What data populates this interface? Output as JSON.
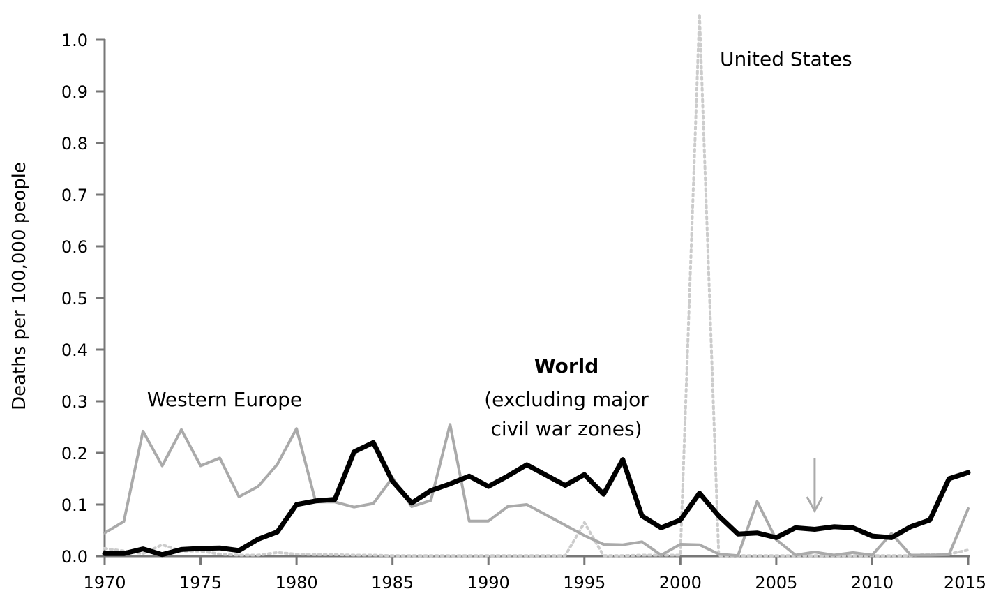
{
  "chart_data": {
    "type": "line",
    "title": "",
    "xlabel": "",
    "ylabel": "Deaths per 100,000 people",
    "xlim": [
      1970,
      2015
    ],
    "ylim": [
      0,
      1.0
    ],
    "x_ticks": [
      "1970",
      "1975",
      "1980",
      "1985",
      "1990",
      "1995",
      "2000",
      "2005",
      "2010",
      "2015"
    ],
    "y_ticks": [
      "0.0",
      "0.1",
      "0.2",
      "0.3",
      "0.4",
      "0.5",
      "0.6",
      "0.7",
      "0.8",
      "0.9",
      "1.0"
    ],
    "grid": false,
    "x": [
      1970,
      1971,
      1972,
      1973,
      1974,
      1975,
      1976,
      1977,
      1978,
      1979,
      1980,
      1981,
      1982,
      1983,
      1984,
      1985,
      1986,
      1987,
      1988,
      1989,
      1990,
      1991,
      1992,
      1993,
      1994,
      1995,
      1996,
      1997,
      1998,
      1999,
      2000,
      2001,
      2002,
      2003,
      2004,
      2005,
      2006,
      2007,
      2008,
      2009,
      2010,
      2011,
      2012,
      2013,
      2014,
      2015
    ],
    "series": [
      {
        "name": "World",
        "style": "solid-thick",
        "color": "#000000",
        "values": [
          0.005,
          0.005,
          0.014,
          0.003,
          0.013,
          0.015,
          0.016,
          0.011,
          0.033,
          0.047,
          0.1,
          0.107,
          0.11,
          0.202,
          0.22,
          0.145,
          0.103,
          0.127,
          0.14,
          0.155,
          0.135,
          0.155,
          0.177,
          0.157,
          0.137,
          0.158,
          0.12,
          0.187,
          0.078,
          0.055,
          0.07,
          0.122,
          0.078,
          0.043,
          0.045,
          0.036,
          0.055,
          0.052,
          0.057,
          0.055,
          0.039,
          0.036,
          0.057,
          0.07,
          0.15,
          0.162
        ]
      },
      {
        "name": "Western Europe",
        "style": "solid",
        "color": "#aaaaaa",
        "values": [
          0.045,
          0.067,
          0.242,
          0.175,
          0.245,
          0.175,
          0.19,
          0.115,
          0.135,
          0.178,
          0.247,
          0.105,
          0.105,
          0.095,
          0.102,
          0.152,
          0.096,
          0.108,
          0.255,
          0.068,
          0.068,
          0.096,
          0.1,
          0.08,
          0.06,
          0.04,
          0.023,
          0.022,
          0.028,
          0.002,
          0.023,
          0.022,
          0.004,
          0.001,
          0.106,
          0.032,
          0.002,
          0.008,
          0.002,
          0.007,
          0.002,
          0.044,
          0.002,
          0.002,
          0.003,
          0.092
        ]
      },
      {
        "name": "United States",
        "style": "dotted",
        "color": "#cccccc",
        "values": [
          0.015,
          0.01,
          0.005,
          0.022,
          0.01,
          0.01,
          0.004,
          0.002,
          0.002,
          0.007,
          0.004,
          0.003,
          0.003,
          0.002,
          0.002,
          0.001,
          0.001,
          0.001,
          0.001,
          0.001,
          0.001,
          0.001,
          0.001,
          0.001,
          0.001,
          0.065,
          0.001,
          0.001,
          0.002,
          0.002,
          0.002,
          1.05,
          0.001,
          0.001,
          0.001,
          0.001,
          0.001,
          0.001,
          0.001,
          0.001,
          0.001,
          0.001,
          0.001,
          0.004,
          0.004,
          0.012
        ]
      }
    ],
    "annotations": {
      "western_europe": "Western Europe",
      "world_title": "World",
      "world_sub1": "(excluding major",
      "world_sub2": "civil war zones)",
      "united_states": "United States"
    },
    "arrow_year": 2007
  }
}
